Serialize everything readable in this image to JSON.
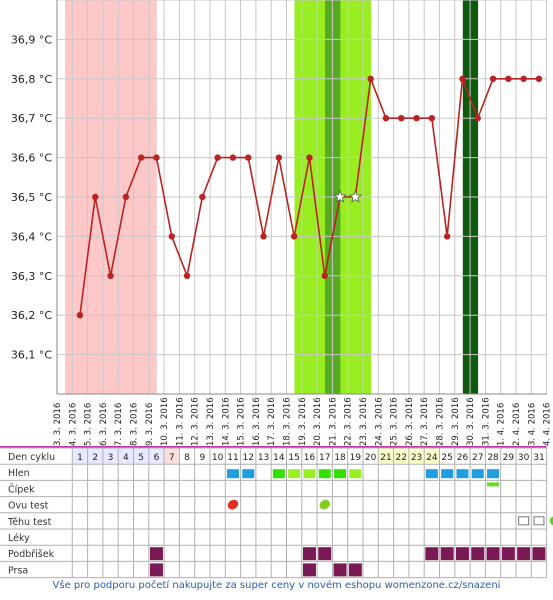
{
  "chart_data": {
    "type": "line",
    "ylim": [
      36.0,
      37.0
    ],
    "yticks": [
      "36,1 °C",
      "36,2 °C",
      "36,3 °C",
      "36,4 °C",
      "36,5 °C",
      "36,6 °C",
      "36,7 °C",
      "36,8 °C",
      "36,9 °C"
    ],
    "ytick_values": [
      36.1,
      36.2,
      36.3,
      36.4,
      36.5,
      36.6,
      36.7,
      36.8,
      36.9
    ],
    "dates": [
      "3. 3. 2016",
      "4. 3. 2016",
      "5. 3. 2016",
      "6. 3. 2016",
      "7. 3. 2016",
      "8. 3. 2016",
      "9. 3. 2016",
      "10. 3. 2016",
      "11. 3. 2016",
      "12. 3. 2016",
      "13. 3. 2016",
      "14. 3. 2016",
      "15. 3. 2016",
      "16. 3. 2016",
      "17. 3. 2016",
      "18. 3. 2016",
      "19. 3. 2016",
      "20. 3. 2016",
      "21. 3. 2016",
      "22. 3. 2016",
      "23. 3. 2016",
      "24. 3. 2016",
      "25. 3. 2016",
      "26. 3. 2016",
      "27. 3. 2016",
      "28. 3. 2016",
      "29. 3. 2016",
      "30. 3. 2016",
      "31. 3. 2016",
      "1. 4. 2016",
      "2. 4. 2016",
      "3. 4. 2016",
      "4. 4. 2016"
    ],
    "temperatures": [
      36.2,
      36.5,
      36.3,
      36.5,
      36.6,
      36.6,
      36.4,
      36.3,
      36.5,
      36.6,
      36.6,
      36.6,
      36.4,
      36.6,
      36.4,
      36.6,
      36.3,
      36.5,
      36.5,
      36.8,
      36.7,
      36.7,
      36.7,
      36.7,
      36.4,
      36.8,
      36.7,
      36.8,
      36.8,
      36.8,
      36.8
    ],
    "star_days": [
      18,
      19
    ],
    "period_days": [
      1,
      6
    ],
    "fertile_days": [
      16,
      20
    ],
    "ovulation_days": [
      18,
      18
    ],
    "dark_band_days": [
      27,
      27
    ]
  },
  "rows": {
    "labels": [
      "Den cyklu",
      "Hlen",
      "Čípek",
      "Ovu test",
      "Těhu test",
      "Léky",
      "Podbřišek",
      "Prsa"
    ],
    "day_numbers": [
      "1",
      "2",
      "3",
      "4",
      "5",
      "6",
      "7",
      "8",
      "9",
      "10",
      "11",
      "12",
      "13",
      "14",
      "15",
      "16",
      "17",
      "18",
      "19",
      "20",
      "21",
      "22",
      "23",
      "24",
      "25",
      "26",
      "27",
      "28",
      "29",
      "30",
      "31"
    ]
  },
  "markers": {
    "hlen": {
      "11": "#1e9ee0",
      "12": "#1e9ee0",
      "14": "#33e000",
      "15": "#99ee22",
      "16": "#99ee22",
      "17": "#33e000",
      "18": "#33e000",
      "19": "#99ee22",
      "24": "#1e9ee0",
      "25": "#1e9ee0",
      "26": "#1e9ee0",
      "27": "#1e9ee0",
      "28": "#1e9ee0"
    },
    "cipek": {
      "28": "#66dd22"
    },
    "ovu": {
      "11": "#e03020",
      "17": "#88cc22"
    },
    "tehu": {
      "30": "#777777",
      "31": "#777777",
      "32": "#66cc22"
    },
    "podbrisek": [
      6,
      16,
      17,
      24,
      25,
      26,
      27,
      28,
      29,
      30,
      31
    ],
    "prsa": [
      6,
      16,
      18,
      19
    ],
    "marker_color": "#7a1a55"
  },
  "colors": {
    "line": "#bb2222",
    "period": "#ffc8c8",
    "fertile": "#99ee22",
    "ovulation": "#55aa22",
    "dark_band": "#0f5a0f"
  },
  "footer": "Vše pro podporu početí nakupujte za super ceny v novém eshopu womenzone.cz/snazeni"
}
